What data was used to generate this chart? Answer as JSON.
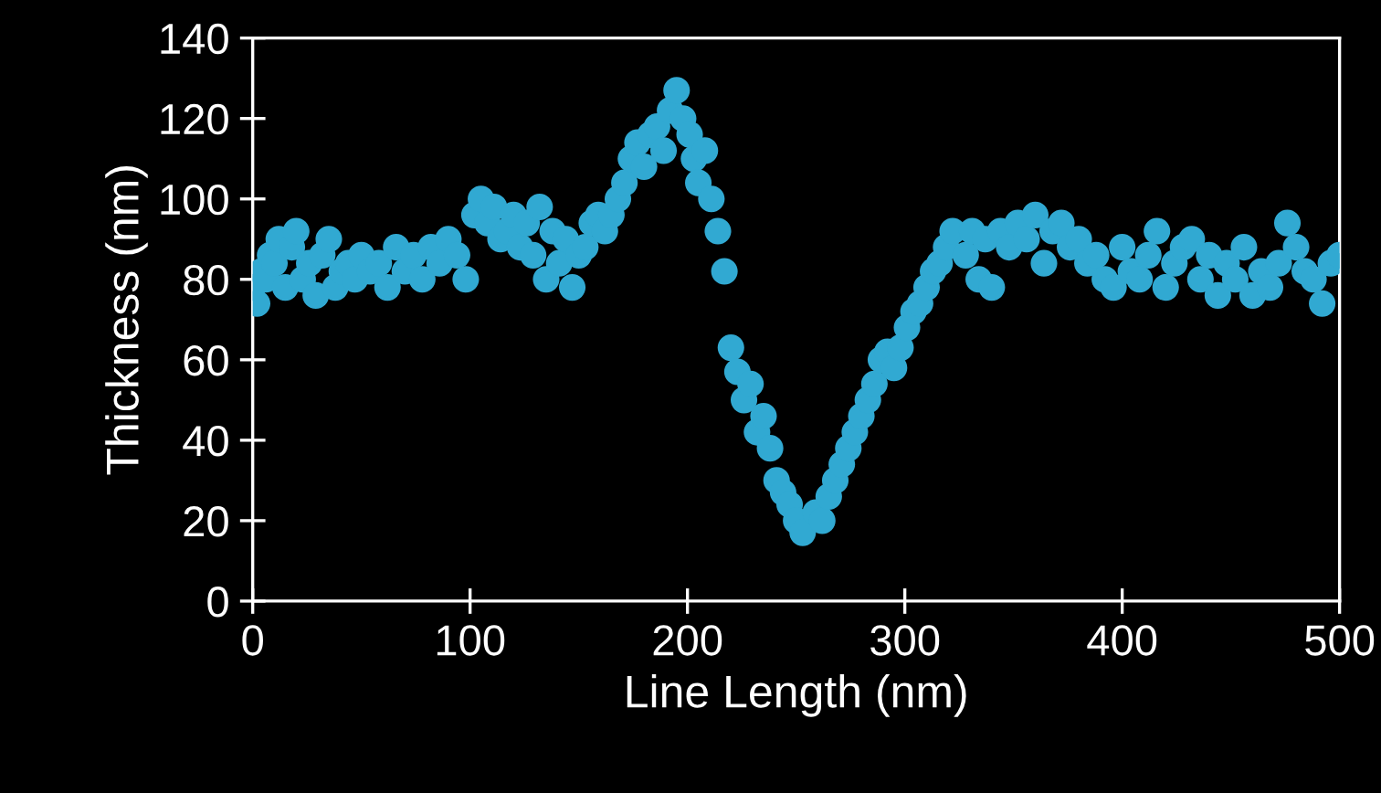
{
  "chart_data": {
    "type": "scatter",
    "xlabel": "Line Length (nm)",
    "ylabel": "Thickness (nm)",
    "xlim": [
      0,
      500
    ],
    "ylim": [
      0,
      140
    ],
    "xticks": [
      0,
      100,
      200,
      300,
      400,
      500
    ],
    "yticks": [
      0,
      20,
      40,
      60,
      80,
      100,
      120,
      140
    ],
    "grid": false,
    "legend": false,
    "marker": "circle",
    "series": [
      {
        "color": "#31a9d2",
        "x": [
          0,
          2,
          4,
          6,
          8,
          10,
          12,
          15,
          18,
          20,
          23,
          26,
          29,
          32,
          35,
          38,
          41,
          44,
          47,
          50,
          54,
          58,
          62,
          66,
          70,
          74,
          78,
          82,
          86,
          90,
          94,
          98,
          102,
          105,
          108,
          111,
          114,
          117,
          120,
          123,
          126,
          129,
          132,
          135,
          138,
          141,
          144,
          147,
          150,
          153,
          156,
          159,
          162,
          165,
          168,
          171,
          174,
          177,
          180,
          183,
          186,
          189,
          192,
          195,
          198,
          201,
          203,
          205,
          208,
          211,
          214,
          217,
          220,
          223,
          226,
          229,
          232,
          235,
          238,
          241,
          244,
          247,
          250,
          253,
          259,
          262,
          265,
          268,
          271,
          274,
          277,
          280,
          283,
          286,
          289,
          292,
          295,
          298,
          301,
          304,
          307,
          310,
          313,
          316,
          319,
          322,
          328,
          331,
          334,
          337,
          340,
          344,
          348,
          352,
          356,
          360,
          364,
          368,
          372,
          376,
          380,
          384,
          388,
          392,
          396,
          400,
          404,
          408,
          412,
          416,
          420,
          424,
          428,
          432,
          436,
          440,
          444,
          448,
          452,
          456,
          460,
          464,
          468,
          472,
          476,
          480,
          484,
          488,
          492,
          496,
          500
        ],
        "values": [
          78,
          74,
          82,
          80,
          86,
          84,
          90,
          78,
          88,
          92,
          80,
          84,
          76,
          86,
          90,
          78,
          82,
          84,
          80,
          86,
          82,
          84,
          78,
          88,
          82,
          86,
          80,
          88,
          84,
          90,
          86,
          80,
          96,
          100,
          94,
          98,
          90,
          92,
          96,
          88,
          94,
          86,
          98,
          80,
          92,
          84,
          90,
          78,
          86,
          88,
          94,
          96,
          92,
          96,
          100,
          104,
          110,
          114,
          108,
          116,
          118,
          112,
          122,
          127,
          120,
          116,
          110,
          104,
          112,
          100,
          92,
          82,
          63,
          57,
          50,
          54,
          42,
          46,
          38,
          30,
          27,
          24,
          20,
          17,
          22,
          20,
          26,
          30,
          34,
          38,
          42,
          46,
          50,
          54,
          60,
          62,
          58,
          63,
          68,
          72,
          74,
          78,
          82,
          84,
          88,
          92,
          86,
          92,
          80,
          90,
          78,
          92,
          88,
          94,
          90,
          96,
          84,
          92,
          94,
          88,
          90,
          84,
          86,
          80,
          78,
          88,
          82,
          80,
          86,
          92,
          78,
          84,
          88,
          90,
          80,
          86,
          76,
          84,
          80,
          88,
          76,
          82,
          78,
          84,
          94,
          88,
          82,
          80,
          74,
          84,
          86
        ]
      }
    ]
  }
}
